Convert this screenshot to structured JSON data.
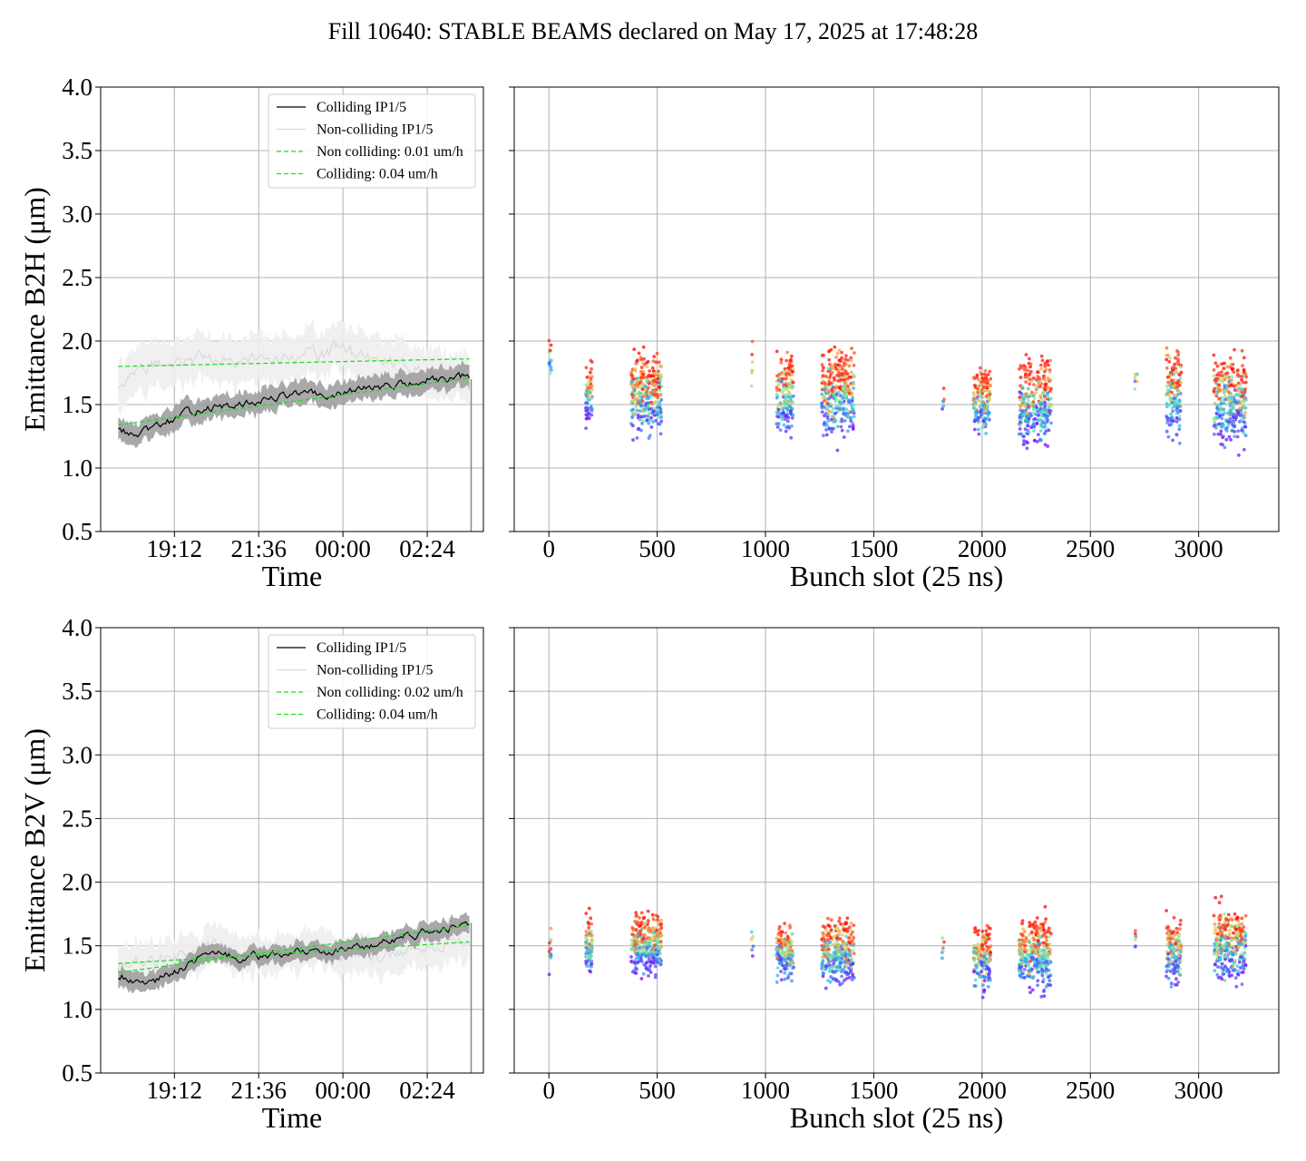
{
  "title": "Fill 10640: STABLE BEAMS declared on May 17, 2025 at 17:48:28",
  "colors": {
    "colliding": "#000000",
    "colliding_band": "#9a9a9a",
    "noncolliding": "#d9d9d9",
    "noncolliding_band": "#eeeeee",
    "fit": "#22dd22",
    "grid": "#b0b0b0"
  },
  "chart_data": [
    {
      "type": "line",
      "panel": "top-left",
      "xlabel": "Time",
      "ylabel": "Emittance B2H (μm)",
      "xticks": [
        "19:12",
        "21:36",
        "00:00",
        "02:24"
      ],
      "xtick_hours": [
        19.2,
        21.6,
        24.0,
        26.4
      ],
      "xlim_hours": [
        17.1,
        28.0
      ],
      "ylim": [
        0.5,
        4.0
      ],
      "yticks": [
        "0.5",
        "1.0",
        "1.5",
        "2.0",
        "2.5",
        "3.0",
        "3.5",
        "4.0"
      ],
      "grid": true,
      "legend": {
        "position": "top-right",
        "entries": [
          "Colliding IP1/5",
          "Non-colliding IP1/5",
          "Non colliding: 0.01 um/h",
          "Colliding: 0.04 um/h"
        ]
      },
      "series": [
        {
          "name": "Colliding IP1/5",
          "x_hours": [
            17.6,
            18.0,
            18.5,
            19.0,
            19.5,
            20.0,
            20.5,
            21.0,
            21.5,
            22.0,
            22.5,
            23.0,
            23.5,
            24.0,
            24.5,
            25.0,
            25.5,
            26.0,
            26.5,
            27.0,
            27.5,
            27.6
          ],
          "y": [
            1.32,
            1.25,
            1.3,
            1.36,
            1.43,
            1.47,
            1.47,
            1.49,
            1.52,
            1.55,
            1.58,
            1.59,
            1.56,
            1.58,
            1.63,
            1.63,
            1.66,
            1.66,
            1.7,
            1.68,
            1.73,
            1.7
          ],
          "band": 0.09
        },
        {
          "name": "Non-colliding IP1/5",
          "x_hours": [
            17.6,
            18.0,
            18.5,
            19.0,
            19.5,
            20.0,
            20.5,
            21.0,
            21.5,
            22.0,
            22.5,
            23.0,
            23.5,
            24.0,
            24.5,
            25.0,
            25.5,
            26.0,
            26.5,
            27.0,
            27.5,
            27.6
          ],
          "y": [
            1.65,
            1.75,
            1.8,
            1.83,
            1.84,
            1.86,
            1.87,
            1.85,
            1.88,
            1.86,
            1.9,
            1.91,
            1.89,
            1.96,
            1.88,
            1.87,
            1.82,
            1.78,
            1.76,
            1.72,
            1.72,
            1.7
          ],
          "band": 0.18
        },
        {
          "name": "Non colliding: 0.01 um/h",
          "dashed": true,
          "x_hours": [
            17.6,
            27.6
          ],
          "y": [
            1.8,
            1.86
          ]
        },
        {
          "name": "Colliding: 0.04 um/h",
          "dashed": true,
          "x_hours": [
            17.6,
            27.6
          ],
          "y": [
            1.34,
            1.71
          ]
        }
      ]
    },
    {
      "type": "scatter",
      "panel": "top-right",
      "xlabel": "Bunch slot (25 ns)",
      "xticks": [
        0,
        500,
        1000,
        1500,
        2000,
        2500,
        3000
      ],
      "xlim": [
        -160,
        3370
      ],
      "ylim": [
        0.5,
        4.0
      ],
      "grid": true,
      "groups": [
        {
          "x": [
            0,
            12
          ],
          "y_range": [
            1.6,
            2.1
          ],
          "n": 14
        },
        {
          "x": [
            170,
            200
          ],
          "y_range": [
            1.25,
            1.9
          ],
          "n": 70
        },
        {
          "x": [
            380,
            520
          ],
          "y_range": [
            1.15,
            2.0
          ],
          "n": 300
        },
        {
          "x": [
            935,
            945
          ],
          "y_range": [
            1.35,
            2.05
          ],
          "n": 6
        },
        {
          "x": [
            1050,
            1130
          ],
          "y_range": [
            1.15,
            2.0
          ],
          "n": 160
        },
        {
          "x": [
            1260,
            1410
          ],
          "y_range": [
            1.1,
            2.05
          ],
          "n": 300
        },
        {
          "x": [
            1815,
            1825
          ],
          "y_range": [
            1.35,
            1.7
          ],
          "n": 6
        },
        {
          "x": [
            1960,
            2040
          ],
          "y_range": [
            1.15,
            1.9
          ],
          "n": 160
        },
        {
          "x": [
            2170,
            2320
          ],
          "y_range": [
            1.05,
            2.0
          ],
          "n": 300
        },
        {
          "x": [
            2705,
            2715
          ],
          "y_range": [
            1.45,
            1.95
          ],
          "n": 6
        },
        {
          "x": [
            2850,
            2920
          ],
          "y_range": [
            1.1,
            2.1
          ],
          "n": 140
        },
        {
          "x": [
            3070,
            3220
          ],
          "y_range": [
            1.05,
            2.05
          ],
          "n": 300
        }
      ]
    },
    {
      "type": "line",
      "panel": "bottom-left",
      "xlabel": "Time",
      "ylabel": "Emittance B2V (μm)",
      "xticks": [
        "19:12",
        "21:36",
        "00:00",
        "02:24"
      ],
      "xtick_hours": [
        19.2,
        21.6,
        24.0,
        26.4
      ],
      "xlim_hours": [
        17.1,
        28.0
      ],
      "ylim": [
        0.5,
        4.0
      ],
      "yticks": [
        "0.5",
        "1.0",
        "1.5",
        "2.0",
        "2.5",
        "3.0",
        "3.5",
        "4.0"
      ],
      "grid": true,
      "legend": {
        "position": "top-right",
        "entries": [
          "Colliding IP1/5",
          "Non-colliding IP1/5",
          "Non colliding: 0.02 um/h",
          "Colliding: 0.04 um/h"
        ]
      },
      "series": [
        {
          "name": "Colliding IP1/5",
          "x_hours": [
            17.6,
            18.0,
            18.5,
            19.0,
            19.5,
            20.0,
            20.5,
            21.0,
            21.5,
            22.0,
            22.5,
            23.0,
            23.5,
            24.0,
            24.5,
            25.0,
            25.5,
            26.0,
            26.5,
            27.0,
            27.5,
            27.6
          ],
          "y": [
            1.27,
            1.24,
            1.2,
            1.28,
            1.32,
            1.43,
            1.44,
            1.4,
            1.42,
            1.43,
            1.45,
            1.45,
            1.46,
            1.47,
            1.5,
            1.51,
            1.55,
            1.58,
            1.62,
            1.63,
            1.67,
            1.68
          ],
          "band": 0.07
        },
        {
          "name": "Non-colliding IP1/5",
          "x_hours": [
            17.6,
            18.0,
            18.5,
            19.0,
            19.5,
            20.0,
            20.5,
            21.0,
            21.5,
            22.0,
            22.5,
            23.0,
            23.5,
            24.0,
            24.5,
            25.0,
            25.5,
            26.0,
            26.5,
            27.0,
            27.5,
            27.6
          ],
          "y": [
            1.36,
            1.38,
            1.38,
            1.4,
            1.42,
            1.47,
            1.5,
            1.44,
            1.47,
            1.45,
            1.44,
            1.45,
            1.44,
            1.43,
            1.42,
            1.43,
            1.46,
            1.48,
            1.5,
            1.53,
            1.55,
            1.55
          ],
          "band": 0.15
        },
        {
          "name": "Non colliding: 0.02 um/h",
          "dashed": true,
          "x_hours": [
            17.6,
            27.6
          ],
          "y": [
            1.36,
            1.53
          ]
        },
        {
          "name": "Colliding: 0.04 um/h",
          "dashed": true,
          "x_hours": [
            17.6,
            27.6
          ],
          "y": [
            1.29,
            1.66
          ]
        }
      ]
    },
    {
      "type": "scatter",
      "panel": "bottom-right",
      "xlabel": "Bunch slot (25 ns)",
      "xticks": [
        0,
        500,
        1000,
        1500,
        2000,
        2500,
        3000
      ],
      "xlim": [
        -160,
        3370
      ],
      "ylim": [
        0.5,
        4.0
      ],
      "grid": true,
      "groups": [
        {
          "x": [
            0,
            12
          ],
          "y_range": [
            1.15,
            1.75
          ],
          "n": 14
        },
        {
          "x": [
            170,
            200
          ],
          "y_range": [
            1.2,
            1.8
          ],
          "n": 70
        },
        {
          "x": [
            380,
            520
          ],
          "y_range": [
            1.2,
            1.85
          ],
          "n": 300
        },
        {
          "x": [
            935,
            945
          ],
          "y_range": [
            1.3,
            1.85
          ],
          "n": 6
        },
        {
          "x": [
            1050,
            1130
          ],
          "y_range": [
            1.15,
            1.75
          ],
          "n": 160
        },
        {
          "x": [
            1260,
            1410
          ],
          "y_range": [
            1.1,
            1.8
          ],
          "n": 300
        },
        {
          "x": [
            1815,
            1825
          ],
          "y_range": [
            1.3,
            1.65
          ],
          "n": 6
        },
        {
          "x": [
            1960,
            2040
          ],
          "y_range": [
            1.05,
            1.75
          ],
          "n": 160
        },
        {
          "x": [
            2170,
            2320
          ],
          "y_range": [
            1.05,
            1.8
          ],
          "n": 300
        },
        {
          "x": [
            2705,
            2715
          ],
          "y_range": [
            1.4,
            1.75
          ],
          "n": 6
        },
        {
          "x": [
            2850,
            2920
          ],
          "y_range": [
            1.1,
            1.8
          ],
          "n": 140
        },
        {
          "x": [
            3070,
            3220
          ],
          "y_range": [
            1.1,
            1.9
          ],
          "n": 300
        }
      ]
    }
  ]
}
